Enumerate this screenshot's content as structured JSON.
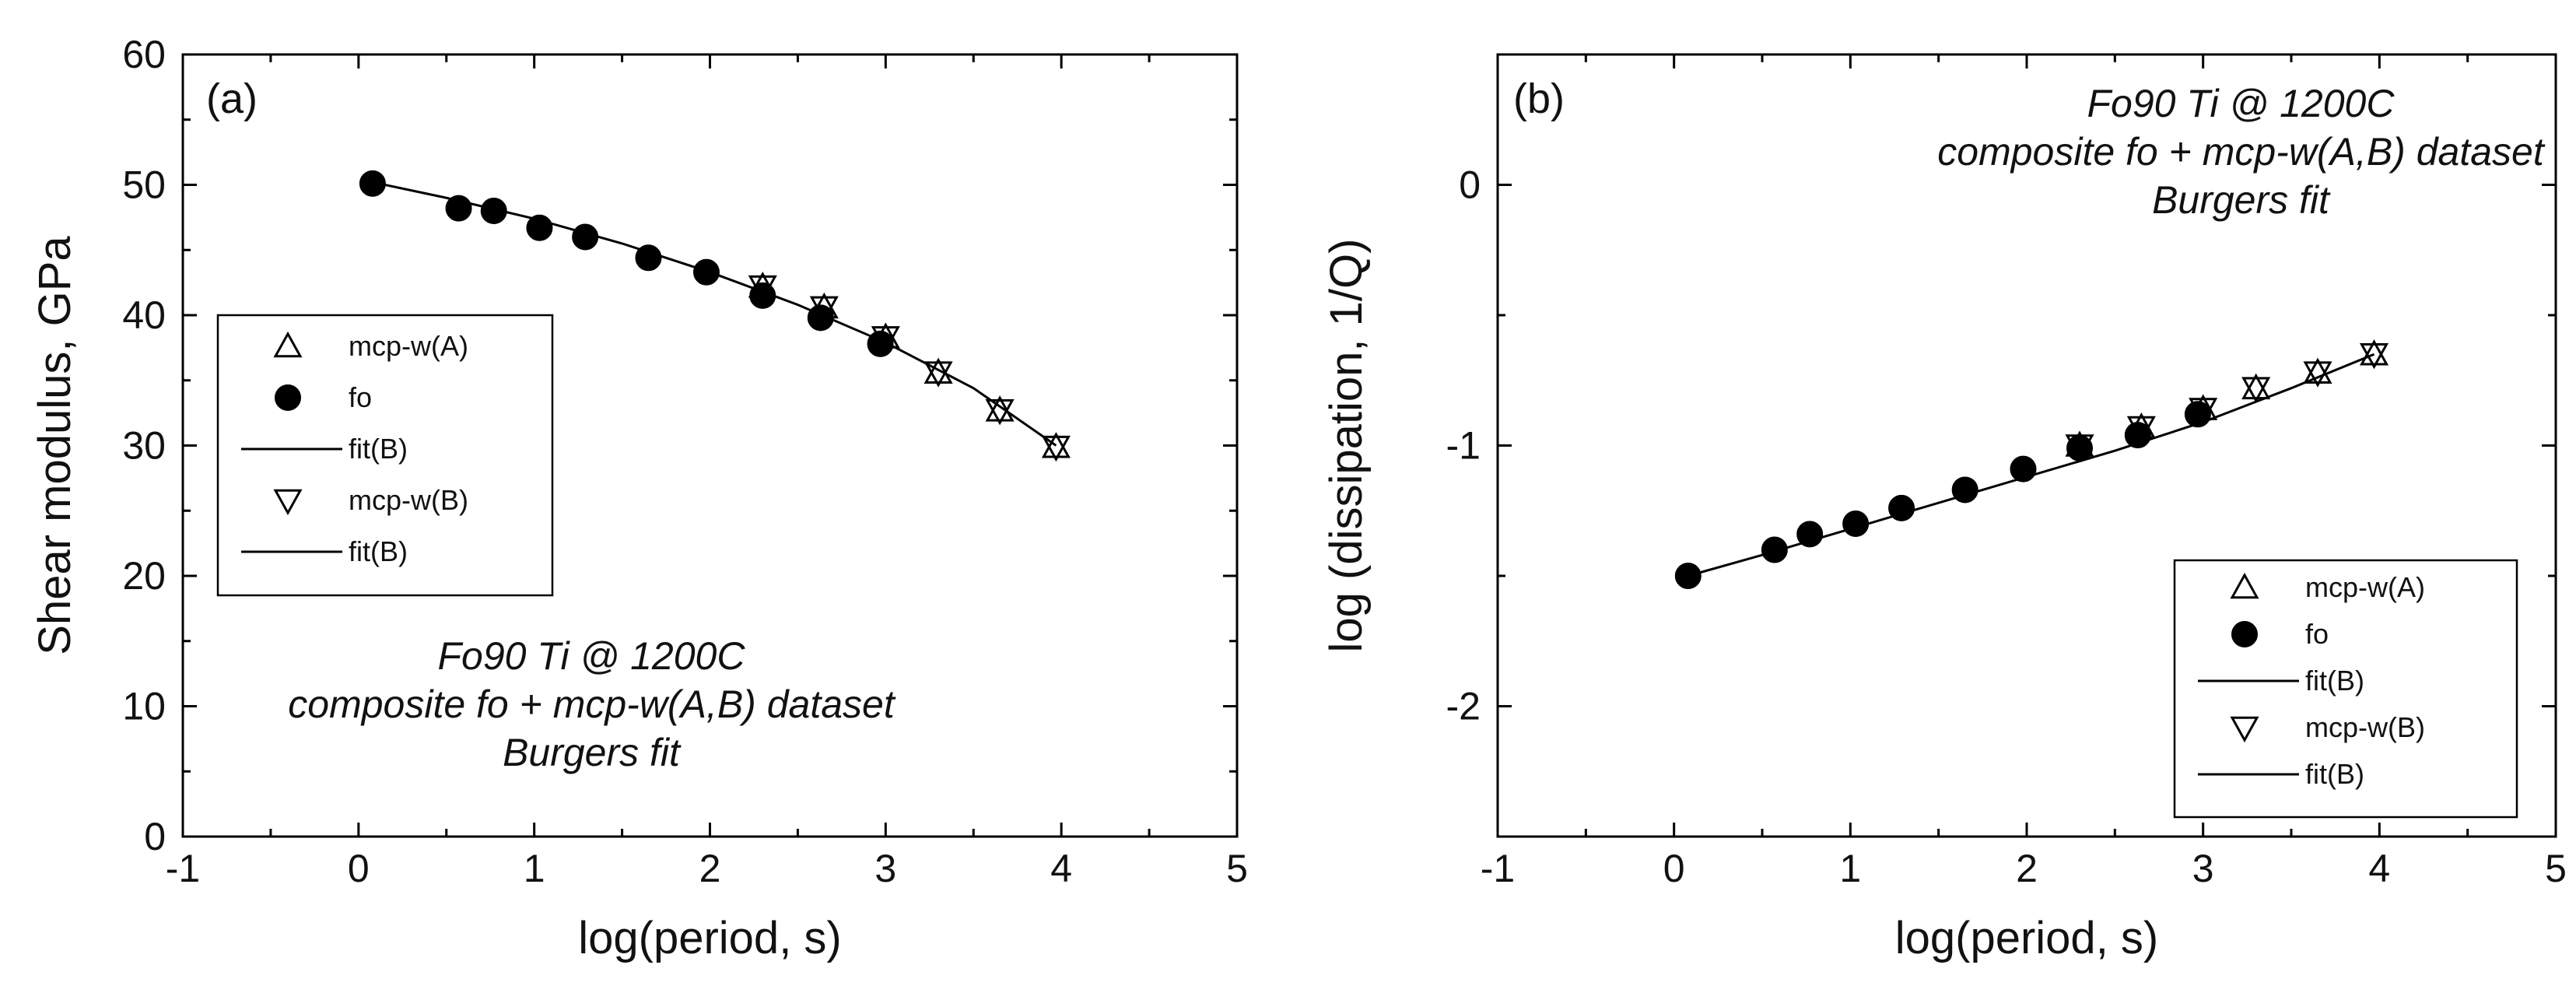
{
  "chart_data": [
    {
      "type": "scatter",
      "panel_label": "(a)",
      "xlabel": "log(period, s)",
      "ylabel": "Shear modulus, GPa",
      "xlim": [
        -1,
        5
      ],
      "ylim": [
        0,
        60
      ],
      "xticks": [
        -1,
        0,
        1,
        2,
        3,
        4,
        5
      ],
      "yticks": [
        0,
        10,
        20,
        30,
        40,
        50,
        60
      ],
      "annotation": [
        "Fo90 Ti @ 1200C",
        "composite fo + mcp-w(A,B) dataset",
        "Burgers fit"
      ],
      "legend_position": "middle-left",
      "legend": [
        "mcp-w(A)",
        "fo",
        "fit(B)",
        "mcp-w(B)",
        "fit(B)"
      ],
      "series": [
        {
          "name": "mcp-w(A)",
          "marker": "triangle-up-open",
          "x": [
            2.3,
            2.65,
            3.0,
            3.3,
            3.65,
            3.97
          ],
          "y": [
            42.2,
            40.6,
            38.3,
            35.6,
            32.7,
            29.9
          ]
        },
        {
          "name": "fo",
          "marker": "circle-filled",
          "x": [
            0.08,
            0.57,
            0.77,
            1.03,
            1.29,
            1.65,
            1.98,
            2.3,
            2.63,
            2.97
          ],
          "y": [
            50.1,
            48.2,
            48.0,
            46.7,
            46.0,
            44.4,
            43.3,
            41.5,
            39.8,
            37.8
          ]
        },
        {
          "name": "mcp-w(B)",
          "marker": "triangle-down-open",
          "x": [
            2.3,
            2.65,
            3.0,
            3.3,
            3.65,
            3.97
          ],
          "y": [
            42.2,
            40.6,
            38.3,
            35.6,
            32.7,
            29.9
          ]
        },
        {
          "name": "fit(B)",
          "marker": "line",
          "x": [
            0.08,
            0.5,
            1.0,
            1.5,
            2.0,
            2.5,
            3.0,
            3.5,
            3.97
          ],
          "y": [
            50.2,
            49.0,
            47.4,
            45.5,
            43.3,
            40.8,
            37.9,
            34.4,
            30.0
          ]
        }
      ]
    },
    {
      "type": "scatter",
      "panel_label": "(b)",
      "xlabel": "log(period, s)",
      "ylabel": "log (dissipation, 1/Q)",
      "xlim": [
        -1,
        5
      ],
      "ylim": [
        -2.5,
        0.5
      ],
      "xticks": [
        -1,
        0,
        1,
        2,
        3,
        4,
        5
      ],
      "yticks": [
        -2,
        -1,
        0
      ],
      "annotation": [
        "Fo90 Ti @ 1200C",
        "composite fo + mcp-w(A,B) dataset",
        "Burgers fit"
      ],
      "legend_position": "bottom-right",
      "legend": [
        "mcp-w(A)",
        "fo",
        "fit(B)",
        "mcp-w(B)",
        "fit(B)"
      ],
      "series": [
        {
          "name": "mcp-w(A)",
          "marker": "triangle-up-open",
          "x": [
            2.3,
            2.65,
            3.0,
            3.3,
            3.65,
            3.97
          ],
          "y": [
            -1.0,
            -0.93,
            -0.86,
            -0.78,
            -0.72,
            -0.65
          ]
        },
        {
          "name": "fo",
          "marker": "circle-filled",
          "x": [
            0.08,
            0.57,
            0.77,
            1.03,
            1.29,
            1.65,
            1.98,
            2.3,
            2.63,
            2.97
          ],
          "y": [
            -1.5,
            -1.4,
            -1.34,
            -1.3,
            -1.24,
            -1.17,
            -1.09,
            -1.01,
            -0.96,
            -0.88
          ]
        },
        {
          "name": "mcp-w(B)",
          "marker": "triangle-down-open",
          "x": [
            2.3,
            2.65,
            3.0,
            3.3,
            3.65,
            3.97
          ],
          "y": [
            -1.0,
            -0.93,
            -0.86,
            -0.78,
            -0.72,
            -0.65
          ]
        },
        {
          "name": "fit(B)",
          "marker": "line",
          "x": [
            0.08,
            0.5,
            1.0,
            1.5,
            2.0,
            2.5,
            3.0,
            3.5,
            3.97
          ],
          "y": [
            -1.5,
            -1.42,
            -1.32,
            -1.22,
            -1.12,
            -1.02,
            -0.91,
            -0.78,
            -0.65
          ]
        }
      ]
    }
  ]
}
